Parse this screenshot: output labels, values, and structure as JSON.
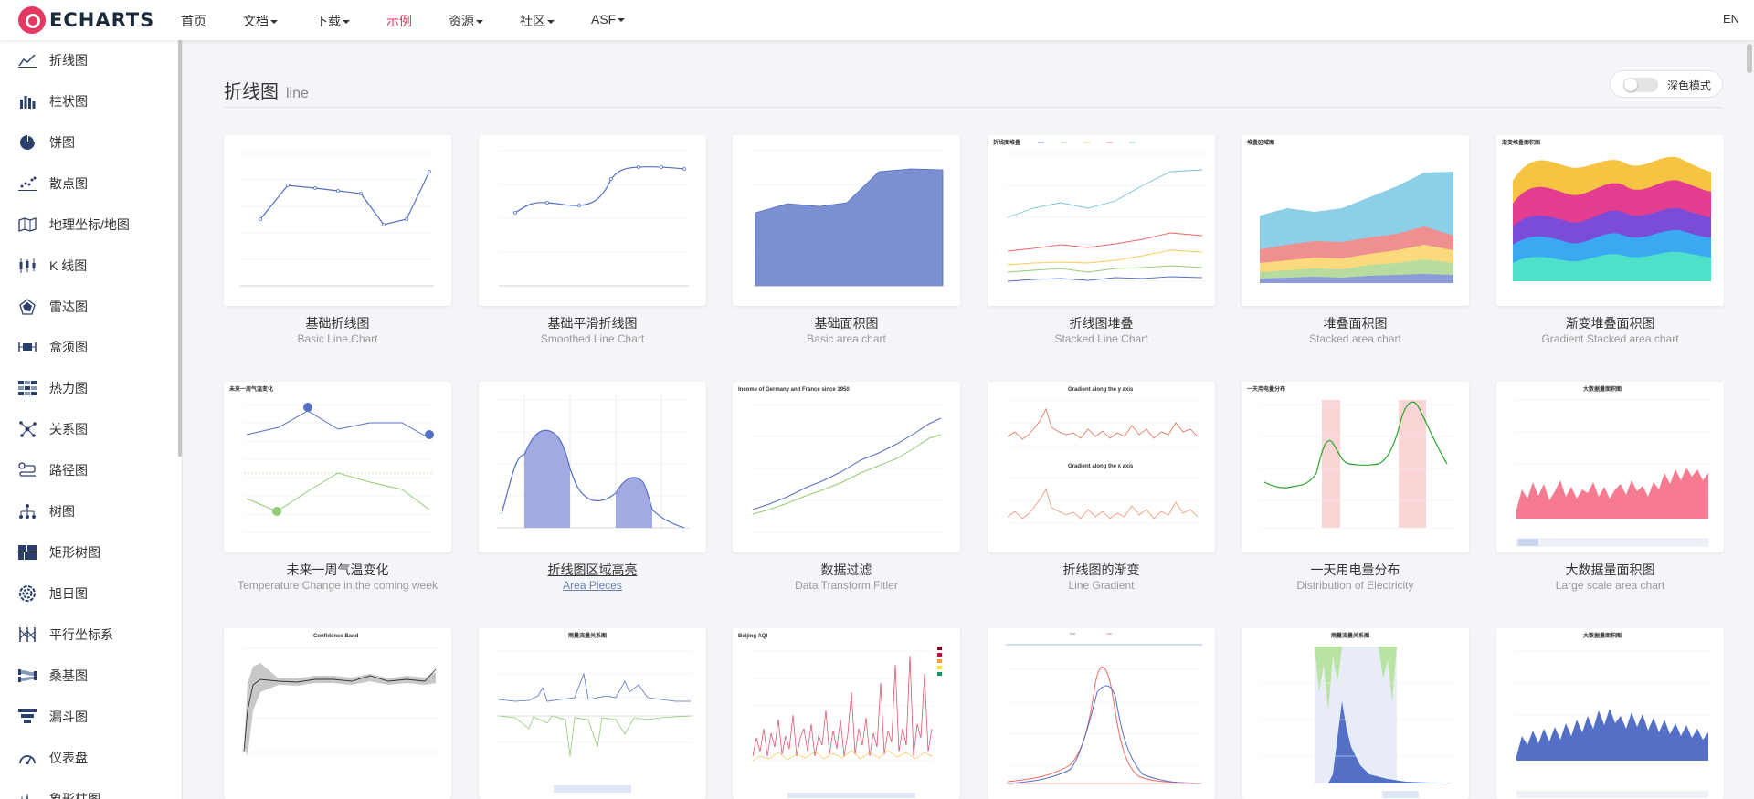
{
  "brand": {
    "logo_text": "ECHARTS",
    "accent": "#e43961"
  },
  "topnav": {
    "items": [
      "首页",
      "文档",
      "下载",
      "示例",
      "资源",
      "社区",
      "ASF"
    ],
    "active": "示例",
    "lang": "EN"
  },
  "sidebar": {
    "items": [
      {
        "label": "折线图",
        "icon": "line-chart-icon"
      },
      {
        "label": "柱状图",
        "icon": "bar-chart-icon"
      },
      {
        "label": "饼图",
        "icon": "pie-chart-icon"
      },
      {
        "label": "散点图",
        "icon": "scatter-chart-icon"
      },
      {
        "label": "地理坐标/地图",
        "icon": "map-icon"
      },
      {
        "label": "K 线图",
        "icon": "candlestick-icon"
      },
      {
        "label": "雷达图",
        "icon": "radar-icon"
      },
      {
        "label": "盒须图",
        "icon": "boxplot-icon"
      },
      {
        "label": "热力图",
        "icon": "heatmap-icon"
      },
      {
        "label": "关系图",
        "icon": "graph-icon"
      },
      {
        "label": "路径图",
        "icon": "lines-icon"
      },
      {
        "label": "树图",
        "icon": "tree-icon"
      },
      {
        "label": "矩形树图",
        "icon": "treemap-icon"
      },
      {
        "label": "旭日图",
        "icon": "sunburst-icon"
      },
      {
        "label": "平行坐标系",
        "icon": "parallel-icon"
      },
      {
        "label": "桑基图",
        "icon": "sankey-icon"
      },
      {
        "label": "漏斗图",
        "icon": "funnel-icon"
      },
      {
        "label": "仪表盘",
        "icon": "gauge-icon"
      },
      {
        "label": "象形柱图",
        "icon": "pictorial-bar-icon"
      }
    ]
  },
  "main": {
    "title": "折线图",
    "subtitle": "line",
    "dark_mode_label": "深色模式",
    "dark_mode_on": false,
    "cards": [
      {
        "title": "基础折线图",
        "subtitle": "Basic Line Chart",
        "thumb": "basic-line"
      },
      {
        "title": "基础平滑折线图",
        "subtitle": "Smoothed Line Chart",
        "thumb": "smooth-line"
      },
      {
        "title": "基础面积图",
        "subtitle": "Basic area chart",
        "thumb": "basic-area"
      },
      {
        "title": "折线图堆叠",
        "subtitle": "Stacked Line Chart",
        "thumb": "stacked-line",
        "thumb_title": "折线图堆叠"
      },
      {
        "title": "堆叠面积图",
        "subtitle": "Stacked area chart",
        "thumb": "stacked-area",
        "thumb_title": "堆叠区域图"
      },
      {
        "title": "渐变堆叠面积图",
        "subtitle": "Gradient Stacked area chart",
        "thumb": "gradient-stacked",
        "thumb_title": "渐变堆叠面积图"
      },
      {
        "title": "未来一周气温变化",
        "subtitle": "Temperature Change in the coming week",
        "thumb": "temperature",
        "thumb_title": "未来一周气温变化"
      },
      {
        "title": "折线图区域高亮",
        "subtitle": "Area Pieces",
        "thumb": "area-pieces",
        "hovered": true
      },
      {
        "title": "数据过滤",
        "subtitle": "Data Transform Fitler",
        "thumb": "data-filter",
        "thumb_title": "Income of Germany and France since 1950"
      },
      {
        "title": "折线图的渐变",
        "subtitle": "Line Gradient",
        "thumb": "line-gradient",
        "thumb_title": "Gradient along the y axis",
        "thumb_title2": "Gradient along the x axis"
      },
      {
        "title": "一天用电量分布",
        "subtitle": "Distribution of Electricity",
        "thumb": "electricity",
        "thumb_title": "一天用电量分布"
      },
      {
        "title": "大数据量面积图",
        "subtitle": "Large scale area chart",
        "thumb": "large-area",
        "thumb_title": "大数据量面积图"
      },
      {
        "title": "",
        "subtitle": "",
        "thumb": "confidence",
        "thumb_title": "Confidence Band"
      },
      {
        "title": "",
        "subtitle": "",
        "thumb": "rainfall",
        "thumb_title": "雨量流量关系图"
      },
      {
        "title": "",
        "subtitle": "",
        "thumb": "aqi",
        "thumb_title": "Beijing AQI"
      },
      {
        "title": "",
        "subtitle": "",
        "thumb": "multi-x",
        "thumb_title": ""
      },
      {
        "title": "",
        "subtitle": "",
        "thumb": "rainfall-2",
        "thumb_title": "雨量流量关系图"
      },
      {
        "title": "",
        "subtitle": "",
        "thumb": "large-area-2",
        "thumb_title": "大数据量面积图"
      }
    ]
  }
}
